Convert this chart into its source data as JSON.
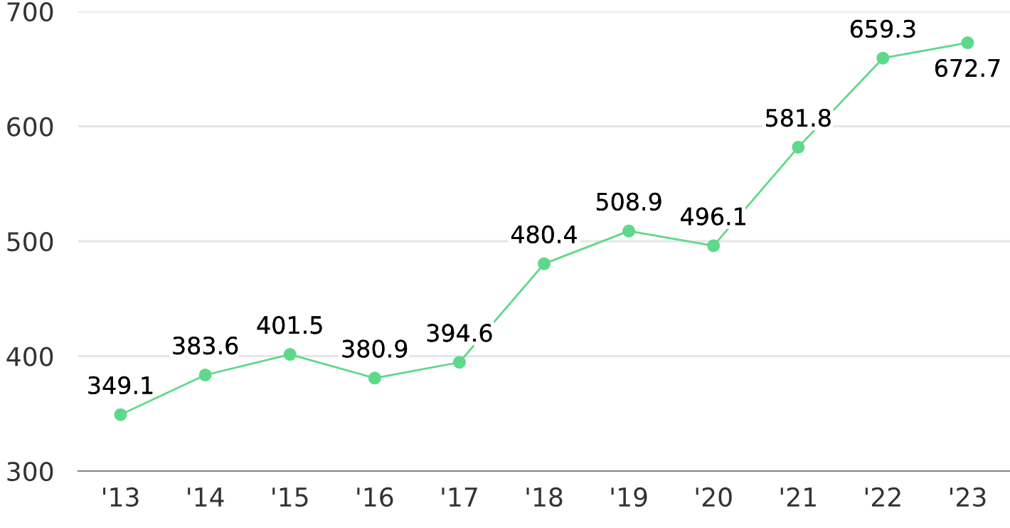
{
  "chart_data": {
    "type": "line",
    "categories": [
      "'13",
      "'14",
      "'15",
      "'16",
      "'17",
      "'18",
      "'19",
      "'20",
      "'21",
      "'22",
      "'23"
    ],
    "series": [
      {
        "color": "#5ed98b",
        "values": [
          349.1,
          383.6,
          401.5,
          380.9,
          394.6,
          480.4,
          508.9,
          496.1,
          581.8,
          659.3,
          672.7
        ]
      }
    ],
    "ylim": [
      300,
      700
    ],
    "yticks": [
      300,
      400,
      500,
      600,
      700
    ],
    "grid": "y",
    "marker": "circle",
    "data_labels": true
  }
}
